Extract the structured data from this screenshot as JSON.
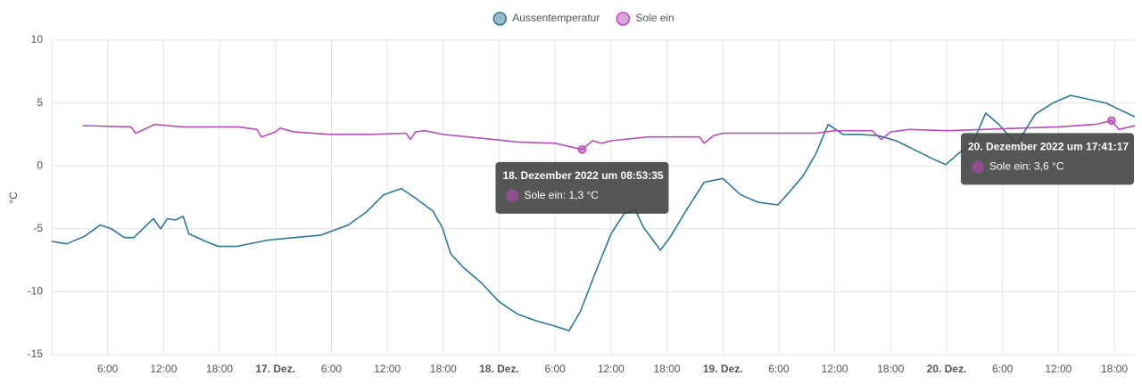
{
  "chart_data": {
    "type": "line",
    "y_label": "°C",
    "xlim": [
      0,
      116.2
    ],
    "ylim": [
      -15,
      10
    ],
    "yticks": [
      -15,
      -10,
      -5,
      0,
      5,
      10
    ],
    "xticks": [
      {
        "value": 6,
        "label": "6:00"
      },
      {
        "value": 12,
        "label": "12:00"
      },
      {
        "value": 18,
        "label": "18:00"
      },
      {
        "value": 24,
        "label": "17. Dez."
      },
      {
        "value": 30,
        "label": "6:00"
      },
      {
        "value": 36,
        "label": "12:00"
      },
      {
        "value": 42,
        "label": "18:00"
      },
      {
        "value": 48,
        "label": "18. Dez."
      },
      {
        "value": 54,
        "label": "6:00"
      },
      {
        "value": 60,
        "label": "12:00"
      },
      {
        "value": 66,
        "label": "18:00"
      },
      {
        "value": 72,
        "label": "19. Dez."
      },
      {
        "value": 78,
        "label": "6:00"
      },
      {
        "value": 84,
        "label": "12:00"
      },
      {
        "value": 90,
        "label": "18:00"
      },
      {
        "value": 96,
        "label": "20. Dez."
      },
      {
        "value": 102,
        "label": "6:00"
      },
      {
        "value": 108,
        "label": "12:00"
      },
      {
        "value": 114,
        "label": "18:00"
      }
    ],
    "grid": true,
    "series": [
      {
        "name": "Aussentemperatur",
        "color": "#2e7793",
        "x": [
          0,
          1.6,
          3.5,
          5.2,
          6.4,
          7.8,
          8.8,
          10.2,
          10.9,
          11.7,
          12.4,
          13.3,
          14.1,
          14.7,
          16.5,
          17.9,
          19.8,
          23.2,
          26,
          28.9,
          31.8,
          33.7,
          35.6,
          37.5,
          38.9,
          40.9,
          41.9,
          42.8,
          44.2,
          46.1,
          48,
          50,
          51.9,
          53.8,
          55.5,
          56.7,
          58.1,
          60,
          61.4,
          62.6,
          63.5,
          65.3,
          66.4,
          68.1,
          70,
          72,
          73.9,
          75.8,
          77.9,
          79.1,
          80.6,
          82,
          83.3,
          84.9,
          86.8,
          88.7,
          90.6,
          92.5,
          94.4,
          95.9,
          97.3,
          98.8,
          100.2,
          101.6,
          103.5,
          105.5,
          107.4,
          109.3,
          111.2,
          113.1,
          114.5,
          116.2
        ],
        "values": [
          -6.0,
          -6.2,
          -5.6,
          -4.7,
          -5.0,
          -5.7,
          -5.7,
          -4.7,
          -4.2,
          -5.0,
          -4.2,
          -4.3,
          -4.0,
          -5.4,
          -6.0,
          -6.4,
          -6.4,
          -5.9,
          -5.7,
          -5.5,
          -4.7,
          -3.7,
          -2.3,
          -1.8,
          -2.5,
          -3.6,
          -4.9,
          -7.0,
          -8.1,
          -9.3,
          -10.8,
          -11.8,
          -12.3,
          -12.7,
          -13.1,
          -11.6,
          -8.9,
          -5.4,
          -3.8,
          -3.5,
          -4.9,
          -6.7,
          -5.6,
          -3.5,
          -1.3,
          -1.0,
          -2.3,
          -2.9,
          -3.1,
          -2.1,
          -0.8,
          1.0,
          3.3,
          2.5,
          2.5,
          2.4,
          2.0,
          1.3,
          0.6,
          0.1,
          1.0,
          1.8,
          4.2,
          3.3,
          1.7,
          4.1,
          5.0,
          5.6,
          5.3,
          5.0,
          4.5,
          3.9
        ]
      },
      {
        "name": "Sole ein",
        "color": "#b84cb8",
        "x": [
          3.3,
          8.5,
          9.0,
          10.5,
          11,
          14,
          20,
          22,
          22.5,
          24,
          24.5,
          26,
          30,
          34,
          38,
          38.5,
          39,
          40,
          42,
          46,
          50,
          54,
          56.9,
          58,
          59,
          60,
          64,
          68,
          69.5,
          70,
          71,
          72,
          78,
          82,
          84,
          88,
          89,
          90,
          92,
          96,
          100,
          104,
          108,
          112,
          113.7,
          114.5,
          116.2
        ],
        "values": [
          3.2,
          3.1,
          2.6,
          3.1,
          3.3,
          3.1,
          3.1,
          2.9,
          2.3,
          2.7,
          3.0,
          2.7,
          2.5,
          2.5,
          2.6,
          2.1,
          2.7,
          2.8,
          2.5,
          2.2,
          1.9,
          1.8,
          1.3,
          2.0,
          1.8,
          2.0,
          2.3,
          2.3,
          2.3,
          1.8,
          2.4,
          2.6,
          2.6,
          2.6,
          2.8,
          2.8,
          2.1,
          2.7,
          2.9,
          2.8,
          2.9,
          3.0,
          3.1,
          3.3,
          3.6,
          2.9,
          3.2
        ]
      }
    ],
    "annotations": [
      {
        "title": "18. Dezember 2022 um 08:53:35",
        "label": "Sole ein: 1,3 °C",
        "x": 56.9,
        "y": 1.3
      },
      {
        "title": "20. Dezember 2022 um 17:41:17",
        "label": "Sole ein: 3,6 °C",
        "x": 113.7,
        "y": 3.6
      }
    ]
  }
}
